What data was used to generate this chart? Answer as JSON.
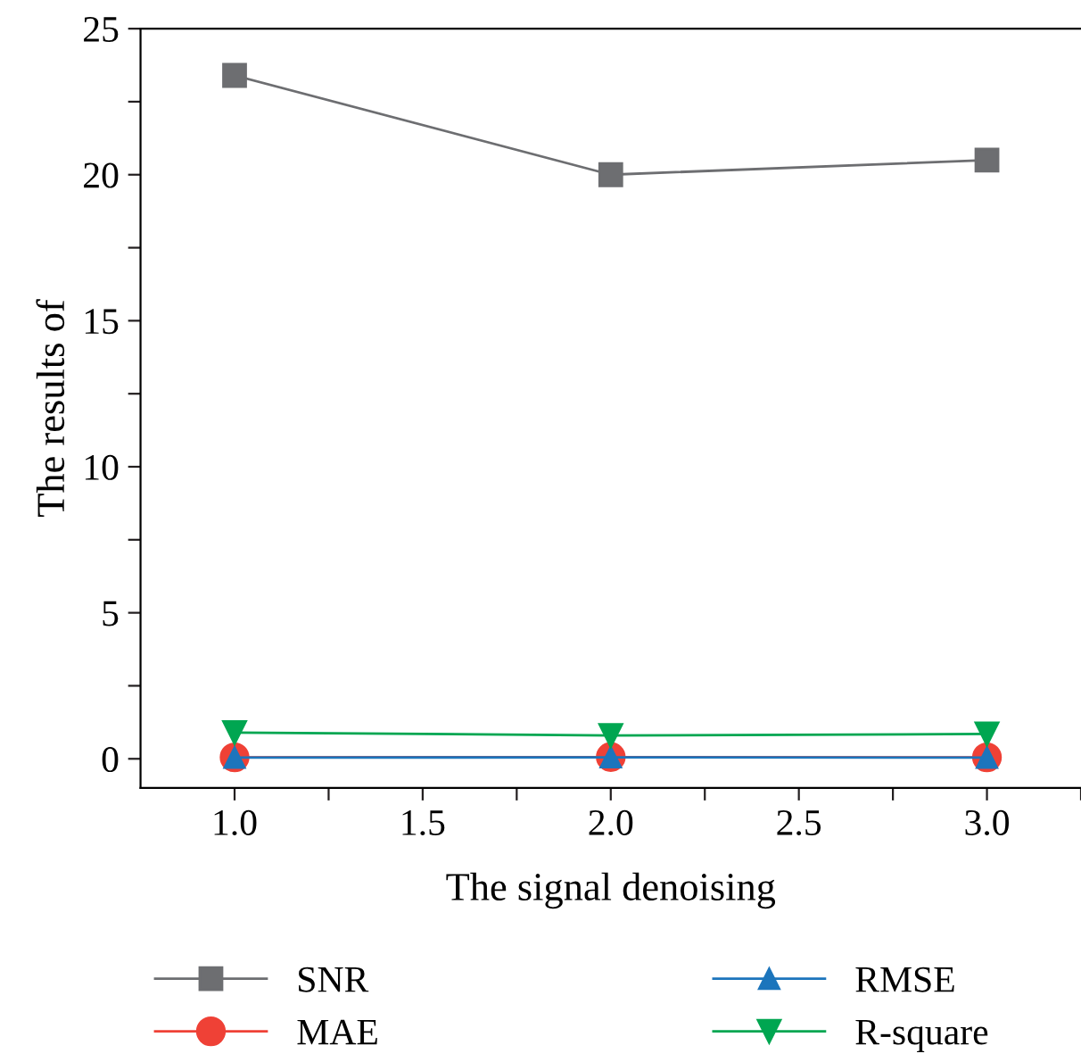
{
  "chart_data": {
    "type": "line",
    "xlabel": "The signal denoising",
    "ylabel": "The results of",
    "x": [
      1.0,
      2.0,
      3.0
    ],
    "series": [
      {
        "name": "SNR",
        "color": "#6d6e71",
        "values": [
          23.4,
          20.0,
          20.5
        ],
        "marker": "square"
      },
      {
        "name": "MAE",
        "color": "#ef4136",
        "values": [
          0.05,
          0.06,
          0.05
        ],
        "marker": "circle"
      },
      {
        "name": "RMSE",
        "color": "#1c75bc",
        "values": [
          0.04,
          0.05,
          0.04
        ],
        "marker": "triangle"
      },
      {
        "name": "R-square",
        "color": "#00a651",
        "values": [
          0.9,
          0.8,
          0.85
        ],
        "marker": "triangle_down"
      }
    ],
    "xlim": [
      0.75,
      3.25
    ],
    "ylim": [
      -1,
      25
    ],
    "xticks": [
      {
        "value": 1.0,
        "label": "1.0"
      },
      {
        "value": 1.25,
        "label": null
      },
      {
        "value": 1.5,
        "label": "1.5"
      },
      {
        "value": 1.75,
        "label": null
      },
      {
        "value": 2.0,
        "label": "2.0"
      },
      {
        "value": 2.25,
        "label": null
      },
      {
        "value": 2.5,
        "label": "2.5"
      },
      {
        "value": 2.75,
        "label": null
      },
      {
        "value": 3.0,
        "label": "3.0"
      },
      {
        "value": 3.25,
        "label": null
      }
    ],
    "yticks": [
      0,
      {
        "value": 2.5,
        "label": null
      },
      5,
      {
        "value": 7.5,
        "label": null
      },
      10,
      {
        "value": 12.5,
        "label": null
      },
      15,
      {
        "value": 17.5,
        "label": null
      },
      20,
      {
        "value": 22.5,
        "label": null
      },
      25
    ],
    "grid": false,
    "legend": "bottom",
    "line_style": "solid"
  }
}
